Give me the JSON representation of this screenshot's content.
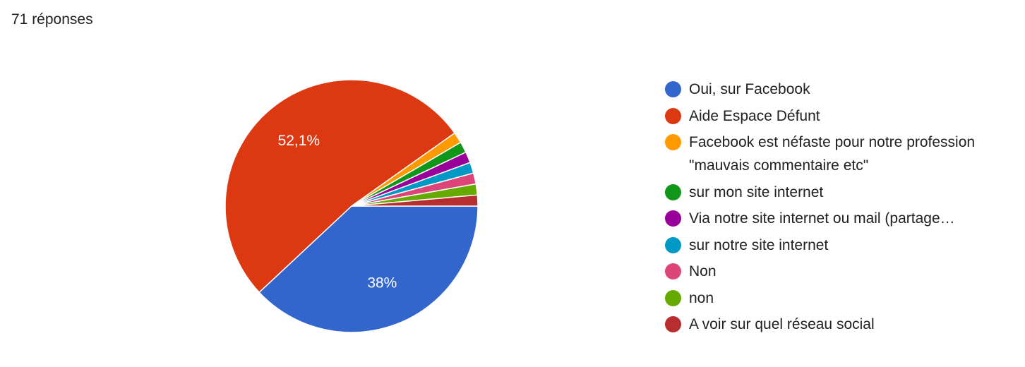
{
  "chart_data": {
    "type": "pie",
    "title": "71 réponses",
    "categories": [
      "Oui, sur Facebook",
      "Aide Espace Défunt",
      "Facebook est néfaste pour notre profession \"mauvais commentaire etc\"",
      "sur mon site internet",
      "Via notre site internet ou mail (partage…",
      "sur notre site internet",
      "Non",
      "non",
      "A voir sur quel réseau social"
    ],
    "values": [
      38,
      52.1,
      1.4,
      1.4,
      1.4,
      1.4,
      1.4,
      1.4,
      1.4
    ],
    "value_labels": [
      "38%",
      "52,1%",
      null,
      null,
      null,
      null,
      null,
      null,
      null
    ],
    "colors": [
      "#3366cc",
      "#dc3912",
      "#ff9900",
      "#109618",
      "#990099",
      "#0099c6",
      "#dd4477",
      "#66aa00",
      "#b82e2e"
    ]
  }
}
